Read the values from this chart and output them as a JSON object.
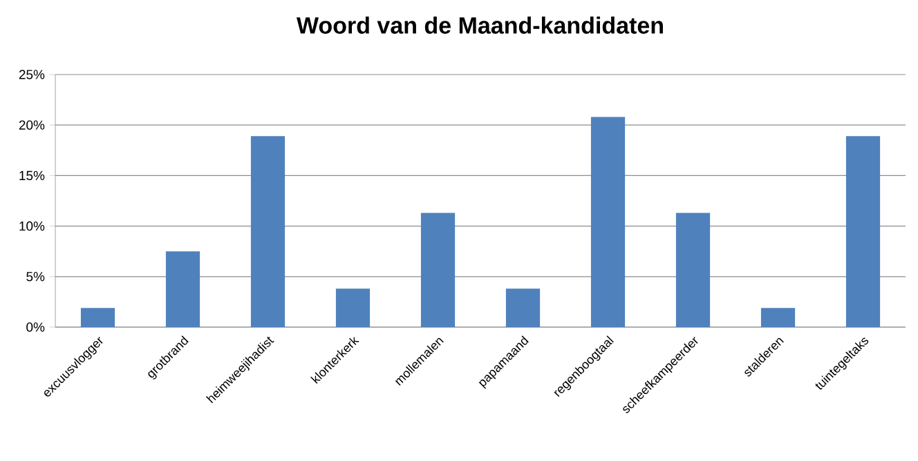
{
  "chart_data": {
    "type": "bar",
    "title": "Woord van de Maand-kandidaten",
    "categories": [
      "excuusvlogger",
      "grotbrand",
      "heimweejihadist",
      "klonterkerk",
      "mollemalen",
      "papamaand",
      "regenboogtaal",
      "scheefkampeerder",
      "stalderen",
      "tuintegeltaks"
    ],
    "values": [
      1.9,
      7.5,
      18.9,
      3.8,
      11.3,
      3.8,
      20.8,
      11.3,
      1.9,
      18.9
    ],
    "color": "#4f81bd",
    "ylim": [
      0,
      25
    ],
    "yticks": [
      {
        "value": 0,
        "label": "0%"
      },
      {
        "value": 5,
        "label": "5%"
      },
      {
        "value": 10,
        "label": "10%"
      },
      {
        "value": 15,
        "label": "15%"
      },
      {
        "value": 20,
        "label": "20%"
      },
      {
        "value": 25,
        "label": "25%"
      }
    ],
    "grid": "y"
  }
}
